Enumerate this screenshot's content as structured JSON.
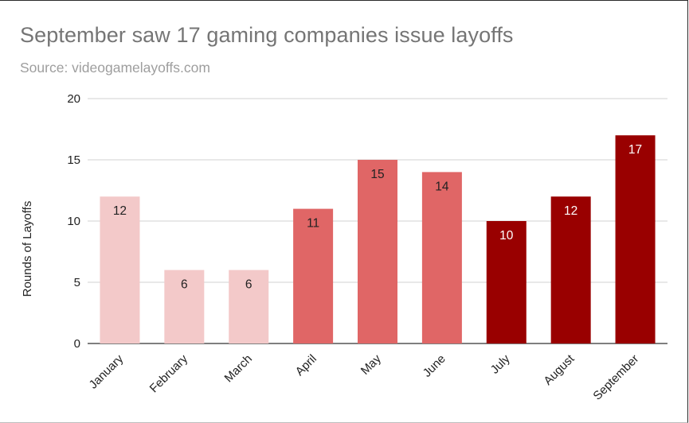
{
  "chart_data": {
    "type": "bar",
    "title": "September saw 17 gaming companies issue layoffs",
    "subtitle": "Source: videogamelayoffs.com",
    "xlabel": "",
    "ylabel": "Rounds of Layoffs",
    "ylim": [
      0,
      20
    ],
    "yticks": [
      0,
      5,
      10,
      15,
      20
    ],
    "grid": true,
    "categories": [
      "January",
      "February",
      "March",
      "April",
      "May",
      "June",
      "July",
      "August",
      "September"
    ],
    "values": [
      12,
      6,
      6,
      11,
      15,
      14,
      10,
      12,
      17
    ],
    "bar_colors": [
      "#f3c9c9",
      "#f3c9c9",
      "#f3c9c9",
      "#e06666",
      "#e06666",
      "#e06666",
      "#990000",
      "#990000",
      "#990000"
    ],
    "label_colors": [
      "#222222",
      "#222222",
      "#222222",
      "#222222",
      "#222222",
      "#222222",
      "#ffffff",
      "#ffffff",
      "#ffffff"
    ]
  }
}
